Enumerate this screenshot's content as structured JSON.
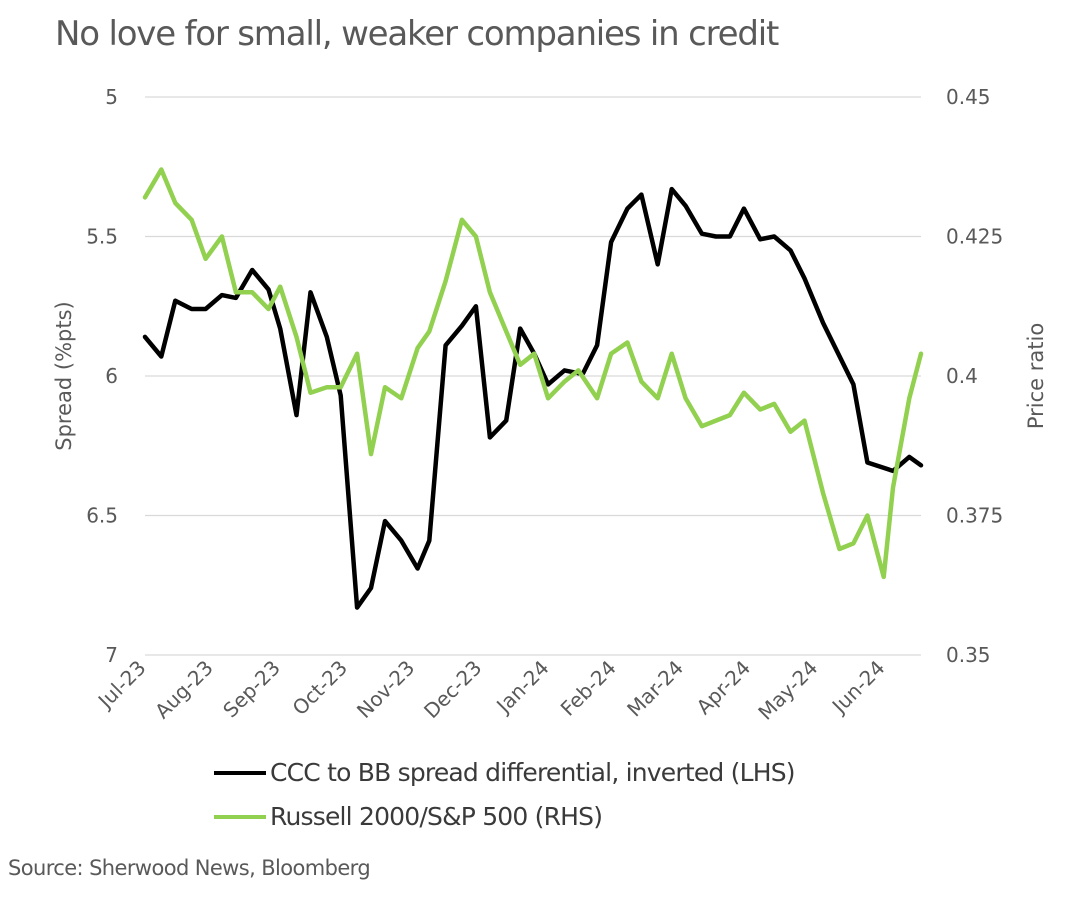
{
  "chart_data": {
    "type": "line",
    "title": "No love for small, weaker companies in credit",
    "xlabel": "",
    "ylabel": "Spread (%pts)",
    "ylabel_right": "Price ratio",
    "ylim": [
      7,
      5
    ],
    "ylim_right": [
      0.35,
      0.45
    ],
    "y_inverted": true,
    "grid": true,
    "legend_position": "bottom",
    "x_tick_labels": [
      "Jul-23",
      "Aug-23",
      "Sep-23",
      "Oct-23",
      "Nov-23",
      "Dec-23",
      "Jan-24",
      "Feb-24",
      "Mar-24",
      "Apr-24",
      "May-24",
      "Jun-24"
    ],
    "y_ticks": [
      "5",
      "5.5",
      "6",
      "6.5",
      "7"
    ],
    "y_ticks_right": [
      "0.45",
      "0.425",
      "0.4",
      "0.375",
      "0.35"
    ],
    "series": [
      {
        "name": "CCC to BB spread differential, inverted (LHS)",
        "axis": "left",
        "color": "#000000",
        "x": [
          0,
          0.07,
          0.13,
          0.2,
          0.26,
          0.33,
          0.39,
          0.46,
          0.53,
          0.58,
          0.65,
          0.71,
          0.78,
          0.84,
          0.91,
          0.97,
          1.03,
          1.1,
          1.17,
          1.22,
          1.29,
          1.36,
          1.42,
          1.48,
          1.55,
          1.61,
          1.67,
          1.73,
          1.8,
          1.86,
          1.88,
          1.94,
          2.0,
          2.07,
          2.13,
          2.2,
          2.26,
          2.32,
          2.39,
          2.45,
          2.51,
          2.57,
          2.64,
          2.7,
          2.77,
          2.83,
          2.91,
          3.04,
          3.1,
          3.21,
          3.28,
          3.33
        ],
        "values": [
          5.86,
          5.93,
          5.73,
          5.76,
          5.76,
          5.71,
          5.72,
          5.62,
          5.69,
          5.83,
          6.14,
          5.7,
          5.86,
          6.07,
          6.83,
          6.76,
          6.52,
          6.59,
          6.69,
          6.59,
          5.89,
          5.82,
          5.75,
          6.22,
          6.16,
          5.83,
          5.92,
          6.03,
          5.98,
          5.99,
          5.99,
          5.89,
          5.52,
          5.4,
          5.35,
          5.6,
          5.33,
          5.39,
          5.49,
          5.5,
          5.5,
          5.4,
          5.51,
          5.5,
          5.55,
          5.65,
          5.81,
          6.03,
          6.31,
          6.34,
          6.29,
          6.32
        ]
      },
      {
        "name": "Russell 2000/S&P 500 (RHS)",
        "axis": "right",
        "color": "#92d050",
        "x": [
          0,
          0.07,
          0.13,
          0.2,
          0.26,
          0.33,
          0.39,
          0.46,
          0.53,
          0.58,
          0.65,
          0.71,
          0.78,
          0.84,
          0.91,
          0.97,
          1.03,
          1.1,
          1.17,
          1.22,
          1.29,
          1.36,
          1.42,
          1.48,
          1.55,
          1.61,
          1.67,
          1.73,
          1.8,
          1.86,
          1.94,
          2.0,
          2.07,
          2.13,
          2.2,
          2.26,
          2.32,
          2.39,
          2.45,
          2.51,
          2.57,
          2.64,
          2.7,
          2.77,
          2.83,
          2.91,
          2.98,
          3.04,
          3.1,
          3.17,
          3.21,
          3.28,
          3.33
        ],
        "values": [
          0.432,
          0.437,
          0.431,
          0.428,
          0.421,
          0.425,
          0.415,
          0.415,
          0.412,
          0.416,
          0.407,
          0.397,
          0.398,
          0.398,
          0.404,
          0.386,
          0.398,
          0.396,
          0.405,
          0.408,
          0.417,
          0.428,
          0.425,
          0.415,
          0.408,
          0.402,
          0.404,
          0.396,
          0.399,
          0.401,
          0.396,
          0.404,
          0.406,
          0.399,
          0.396,
          0.404,
          0.396,
          0.391,
          0.392,
          0.393,
          0.397,
          0.394,
          0.395,
          0.39,
          0.392,
          0.379,
          0.369,
          0.37,
          0.375,
          0.364,
          0.38,
          0.396,
          0.404
        ]
      }
    ]
  },
  "source": "Source: Sherwood News, Bloomberg"
}
